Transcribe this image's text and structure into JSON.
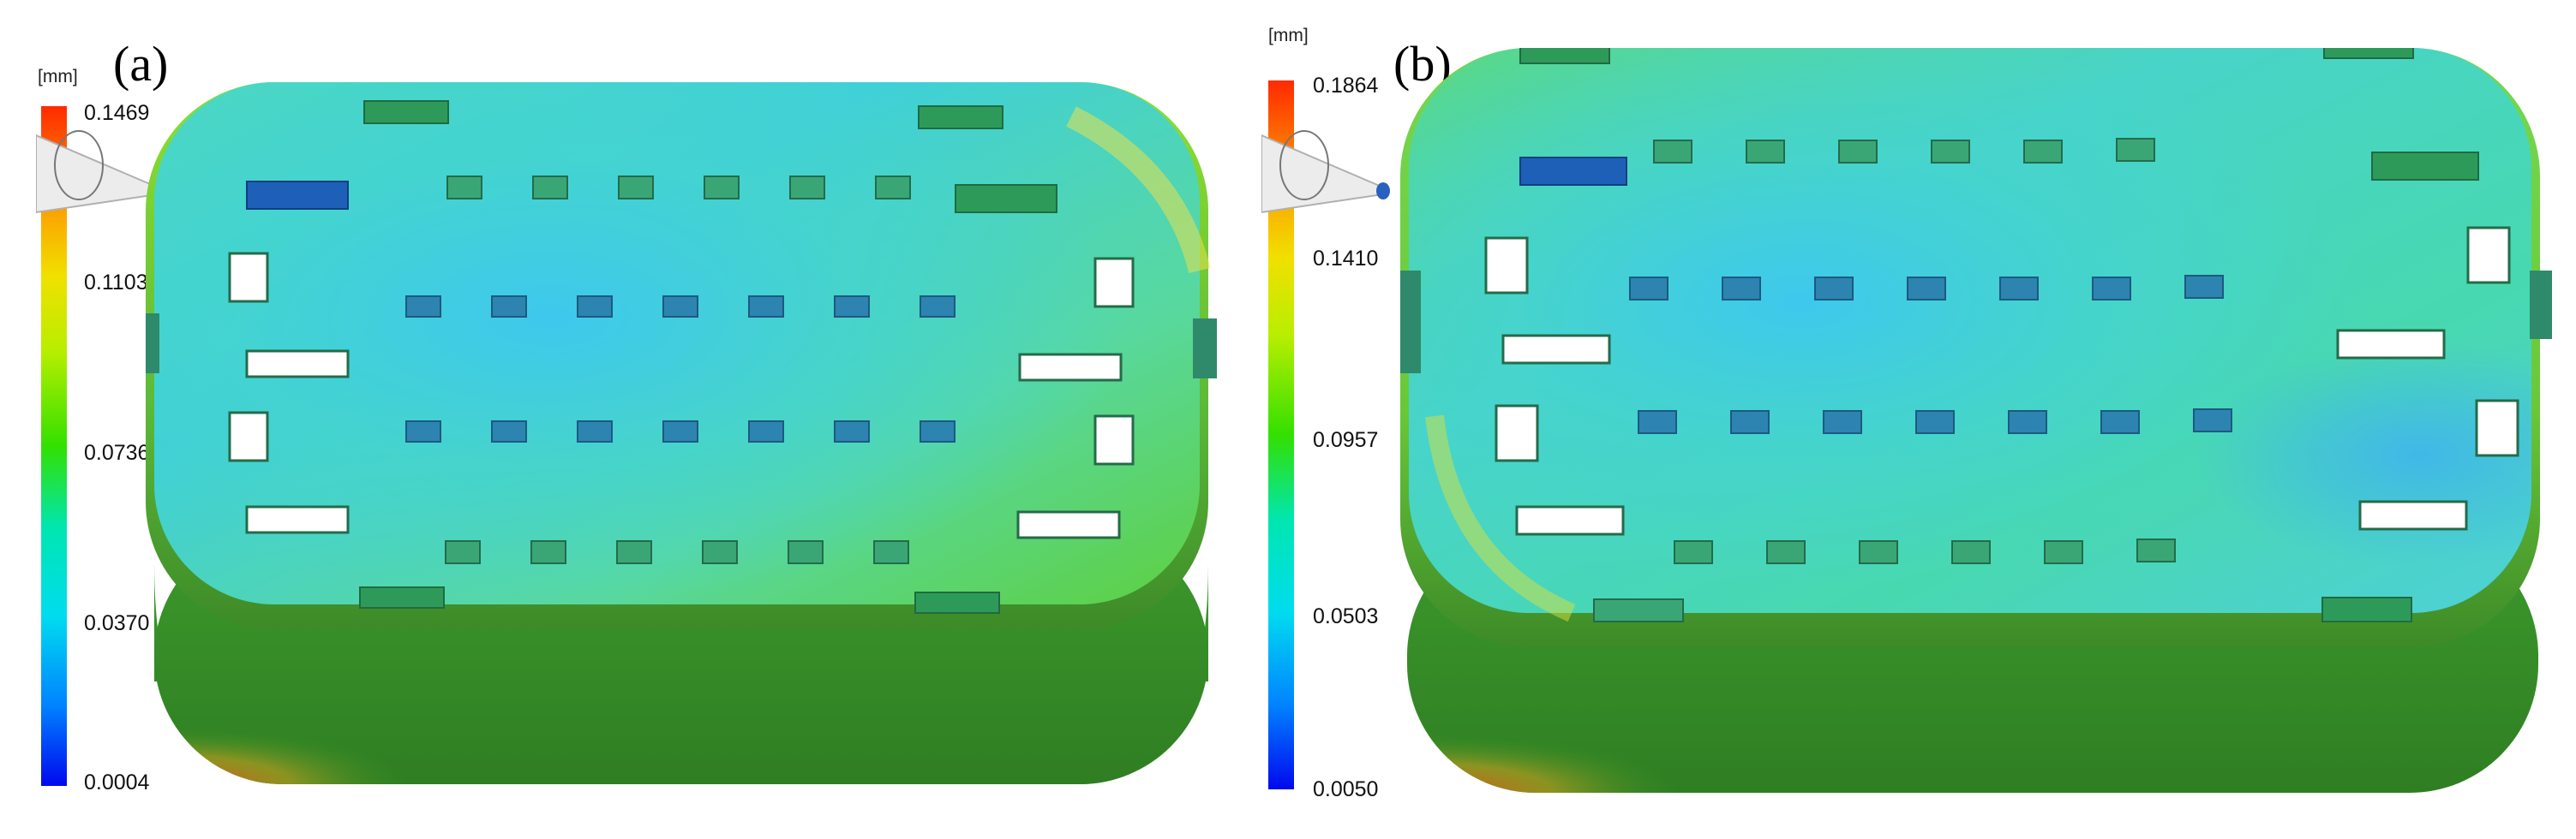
{
  "panels": [
    {
      "id": "a",
      "letter": "(a)",
      "unit": "[mm]",
      "scale_ticks": [
        "0.1469",
        "0.1103",
        "0.0736",
        "0.0370",
        "0.0004"
      ],
      "colormap": "rainbow"
    },
    {
      "id": "b",
      "letter": "(b)",
      "unit": "[mm]",
      "scale_ticks": [
        "0.1864",
        "0.1410",
        "0.0957",
        "0.0503",
        "0.0050"
      ],
      "colormap": "rainbow"
    }
  ]
}
